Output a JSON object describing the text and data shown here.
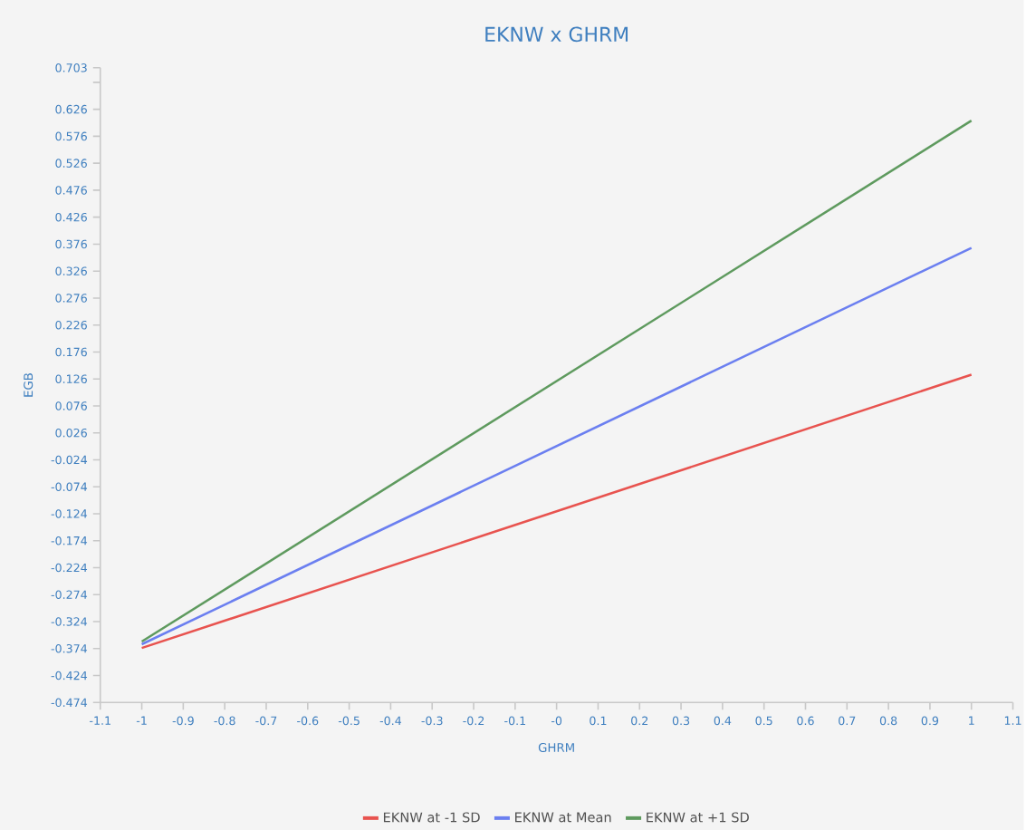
{
  "chart_data": {
    "type": "line",
    "title": "EKNW x GHRM",
    "xlabel": "GHRM",
    "ylabel": "EGB",
    "x": [
      -1,
      1
    ],
    "series": [
      {
        "name": "EKNW at -1 SD",
        "color": "#e8534f",
        "values": [
          -0.373,
          0.134
        ]
      },
      {
        "name": "EKNW at Mean",
        "color": "#6b7ff0",
        "values": [
          -0.366,
          0.369
        ]
      },
      {
        "name": "EKNW at +1 SD",
        "color": "#5e9a5e",
        "values": [
          -0.361,
          0.605
        ]
      }
    ],
    "xlim": [
      -1.1,
      1.1
    ],
    "xticks": [
      -1.1,
      -1,
      -0.9,
      -0.8,
      -0.7,
      -0.6,
      -0.5,
      -0.4,
      -0.3,
      -0.2,
      -0.1,
      {
        "value": 0,
        "label": "-0"
      },
      0.1,
      0.2,
      0.3,
      0.4,
      0.5,
      0.6,
      0.7,
      0.8,
      0.9,
      1,
      1.1
    ],
    "ylim": [
      -0.474,
      0.703
    ],
    "yticks": [
      -0.474,
      -0.424,
      -0.374,
      -0.324,
      -0.274,
      -0.224,
      -0.174,
      -0.124,
      -0.074,
      -0.024,
      0.026,
      0.076,
      0.126,
      0.176,
      0.226,
      0.276,
      0.326,
      0.376,
      0.426,
      0.476,
      0.526,
      0.576,
      0.626,
      {
        "value": 0.676,
        "label": null
      },
      0.703
    ],
    "grid": false,
    "legend": "bottom",
    "marker": "none",
    "line_style": "solid"
  }
}
